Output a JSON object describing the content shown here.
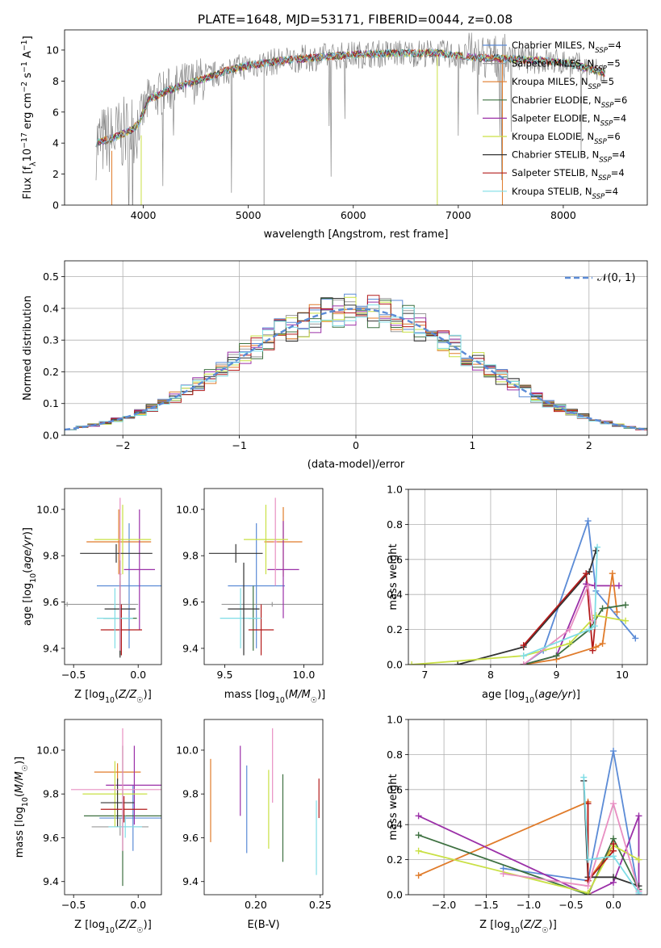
{
  "figure": {
    "title": "PLATE=1648, MJD=53171, FIBERID=0044, z=0.08"
  },
  "series_styles": [
    {
      "name": "Chabrier MILES",
      "nssp": "4",
      "color": "#5b8bd6"
    },
    {
      "name": "Salpeter MILES",
      "nssp": "5",
      "color": "#9a9a9a"
    },
    {
      "name": "Kroupa MILES",
      "nssp": "5",
      "color": "#e07b2a"
    },
    {
      "name": "Chabrier ELODIE",
      "nssp": "6",
      "color": "#3d7040"
    },
    {
      "name": "Salpeter ELODIE",
      "nssp": "4",
      "color": "#9b30a8"
    },
    {
      "name": "Kroupa ELODIE",
      "nssp": "6",
      "color": "#c9e044"
    },
    {
      "name": "Chabrier STELIB",
      "nssp": "4",
      "color": "#333333"
    },
    {
      "name": "Salpeter STELIB",
      "nssp": "4",
      "color": "#b31b1b"
    },
    {
      "name": "Kroupa STELIB",
      "nssp": "4",
      "color": "#7fdde6"
    }
  ],
  "chart_data": [
    {
      "id": "spectrum",
      "type": "line",
      "xlabel": "wavelength [Angstrom, rest frame]",
      "ylabel": "Flux [f_λ 10^-17 erg cm^-2 s^-1 A^-1]",
      "xlim": [
        3250,
        8800
      ],
      "ylim": [
        0,
        11.3
      ],
      "xticks": [
        4000,
        5000,
        6000,
        7000,
        8000
      ],
      "yticks": [
        0,
        2,
        4,
        6,
        8,
        10
      ],
      "data_color": "#888888",
      "continuum": {
        "x": [
          3550,
          3700,
          3850,
          3950,
          4050,
          4200,
          4400,
          4600,
          4800,
          5000,
          5300,
          5600,
          6000,
          6400,
          6800,
          7200,
          7600,
          8000,
          8300,
          8400
        ],
        "y": [
          4.0,
          4.3,
          4.7,
          5.2,
          6.8,
          7.3,
          7.8,
          8.2,
          8.7,
          9.0,
          9.3,
          9.5,
          9.7,
          9.8,
          9.8,
          9.5,
          9.4,
          9.2,
          8.7,
          8.5
        ]
      },
      "grid": false,
      "legend": "right"
    },
    {
      "id": "residuals",
      "type": "line",
      "xlabel": "(data-model)/error",
      "ylabel": "Normed distribution",
      "xlim": [
        -2.5,
        2.5
      ],
      "ylim": [
        0,
        0.55
      ],
      "xticks": [
        -2,
        -1,
        0,
        1,
        2
      ],
      "yticks": [
        0.0,
        0.1,
        0.2,
        0.3,
        0.4,
        0.5
      ],
      "gaussian_label": "𝒩(0, 1)",
      "gaussian_color": "#5b8bd6",
      "grid": true,
      "legend": "top-right"
    },
    {
      "id": "age-vs-Z",
      "type": "scatter",
      "xlabel": "Z [log10(Z/Z☉)]",
      "ylabel": "age [log10(age/yr)]",
      "xlim": [
        -0.57,
        0.18
      ],
      "ylim": [
        9.33,
        10.09
      ],
      "xticks": [
        -0.5,
        0.0
      ],
      "yticks": [
        9.4,
        9.6,
        9.8,
        10.0
      ],
      "points": [
        {
          "x": -0.07,
          "xerr": 0.25,
          "y": 9.67,
          "yerr": 0.27,
          "c": 0
        },
        {
          "x": -0.55,
          "xerr": 0.55,
          "y": 9.59,
          "yerr": 0.01,
          "c": 1
        },
        {
          "x": -0.15,
          "xerr": 0.25,
          "y": 9.86,
          "yerr": 0.14,
          "c": 2
        },
        {
          "x": -0.14,
          "xerr": 0.13,
          "y": 9.53,
          "yerr": 0.16,
          "c": 3
        },
        {
          "x": 0.01,
          "xerr": 0.12,
          "y": 9.74,
          "yerr": 0.26,
          "c": 4
        },
        {
          "x": -0.12,
          "xerr": 0.22,
          "y": 9.87,
          "yerr": 0.15,
          "c": 5
        },
        {
          "x": -0.17,
          "xerr": 0.28,
          "y": 9.81,
          "yerr": 0.04,
          "c": 6
        },
        {
          "x": -0.13,
          "xerr": 0.16,
          "y": 9.48,
          "yerr": 0.11,
          "c": 7
        },
        {
          "x": -0.18,
          "xerr": 0.14,
          "y": 9.53,
          "yerr": 0.13,
          "c": 8
        },
        {
          "x": -0.14,
          "xerr": 0.12,
          "y": 9.57,
          "yerr": 0.21,
          "c": 6
        },
        {
          "x": -0.14,
          "xerr": 0.01,
          "y": 9.72,
          "yerr": 0.33,
          "c": 9
        }
      ]
    },
    {
      "id": "age-vs-mass",
      "type": "scatter",
      "xlabel": "mass [log10(M/M☉)]",
      "ylabel": "",
      "xlim": [
        9.37,
        10.12
      ],
      "ylim": [
        9.33,
        10.09
      ],
      "xticks": [
        9.5,
        10.0
      ],
      "yticks": [
        9.4,
        9.6,
        9.8,
        10.0
      ],
      "points": [
        {
          "x": 9.7,
          "xerr": 0.18,
          "y": 9.67,
          "yerr": 0.27,
          "c": 0
        },
        {
          "x": 9.8,
          "xerr": 0.32,
          "y": 9.59,
          "yerr": 0.01,
          "c": 1
        },
        {
          "x": 9.87,
          "xerr": 0.12,
          "y": 9.86,
          "yerr": 0.15,
          "c": 2
        },
        {
          "x": 9.68,
          "xerr": 0.03,
          "y": 9.53,
          "yerr": 0.14,
          "c": 3
        },
        {
          "x": 9.87,
          "xerr": 0.1,
          "y": 9.74,
          "yerr": 0.21,
          "c": 4
        },
        {
          "x": 9.76,
          "xerr": 0.14,
          "y": 9.87,
          "yerr": 0.15,
          "c": 5
        },
        {
          "x": 9.57,
          "xerr": 0.17,
          "y": 9.81,
          "yerr": 0.04,
          "c": 6
        },
        {
          "x": 9.73,
          "xerr": 0.08,
          "y": 9.48,
          "yerr": 0.11,
          "c": 7
        },
        {
          "x": 9.6,
          "xerr": 0.13,
          "y": 9.53,
          "yerr": 0.13,
          "c": 8
        },
        {
          "x": 9.62,
          "xerr": 0.1,
          "y": 9.57,
          "yerr": 0.2,
          "c": 6
        },
        {
          "x": 9.82,
          "xerr": 0.01,
          "y": 9.86,
          "yerr": 0.19,
          "c": 9
        }
      ]
    },
    {
      "id": "mass-weight-vs-age",
      "type": "line",
      "xlabel": "age  [log10(age/yr)]",
      "ylabel": "mass weight",
      "xlim": [
        6.75,
        10.38
      ],
      "ylim": [
        0,
        1.0
      ],
      "xticks": [
        7,
        8,
        9,
        10
      ],
      "yticks": [
        0.0,
        0.2,
        0.4,
        0.6,
        0.8,
        1.0
      ],
      "grid": true,
      "series": [
        {
          "c": 0,
          "x": [
            8.5,
            8.8,
            9.48,
            9.6,
            10.2
          ],
          "y": [
            0.0,
            0.08,
            0.82,
            0.42,
            0.15
          ]
        },
        {
          "c": 6,
          "x": [
            7.5,
            8.5,
            9.5,
            9.6
          ],
          "y": [
            0.0,
            0.1,
            0.53,
            0.65
          ]
        },
        {
          "c": 7,
          "x": [
            8.5,
            9.45,
            9.55,
            9.6
          ],
          "y": [
            0.11,
            0.52,
            0.08,
            0.28
          ]
        },
        {
          "c": 4,
          "x": [
            8.5,
            9.0,
            9.45,
            9.58,
            9.95
          ],
          "y": [
            0.0,
            0.05,
            0.46,
            0.45,
            0.45
          ]
        },
        {
          "c": 2,
          "x": [
            8.5,
            9.0,
            9.6,
            9.7,
            9.85,
            9.92
          ],
          "y": [
            0.0,
            0.03,
            0.1,
            0.12,
            0.52,
            0.3
          ]
        },
        {
          "c": 3,
          "x": [
            8.5,
            9.0,
            9.5,
            9.7,
            10.05
          ],
          "y": [
            0.0,
            0.05,
            0.2,
            0.32,
            0.34
          ]
        },
        {
          "c": 5,
          "x": [
            6.8,
            8.5,
            9.2,
            9.6,
            10.05
          ],
          "y": [
            0.0,
            0.05,
            0.12,
            0.28,
            0.25
          ]
        },
        {
          "c": 9,
          "x": [
            8.5,
            9.2,
            9.48,
            9.55
          ],
          "y": [
            0.0,
            0.2,
            0.45,
            0.25
          ]
        },
        {
          "c": 8,
          "x": [
            8.5,
            9.5,
            9.58,
            9.62
          ],
          "y": [
            0.05,
            0.2,
            0.22,
            0.67
          ]
        }
      ]
    },
    {
      "id": "mass-vs-Z",
      "type": "scatter",
      "xlabel": "Z [log10(Z/Z☉)]",
      "ylabel": "mass [log10(M/M☉)]",
      "xlim": [
        -0.57,
        0.18
      ],
      "ylim": [
        9.34,
        10.14
      ],
      "xticks": [
        -0.5,
        0.0
      ],
      "yticks": [
        9.4,
        9.6,
        9.8,
        10.0
      ],
      "points": [
        {
          "x": -0.04,
          "xerr": 0.26,
          "y": 9.69,
          "yerr": 0.15,
          "c": 0
        },
        {
          "x": -0.14,
          "xerr": 0.22,
          "y": 9.65,
          "yerr": 0.04,
          "c": 1
        },
        {
          "x": -0.16,
          "xerr": 0.18,
          "y": 9.9,
          "yerr": 0.04,
          "c": 2
        },
        {
          "x": -0.12,
          "xerr": 0.3,
          "y": 9.7,
          "yerr": 0.32,
          "c": 3
        },
        {
          "x": -0.03,
          "xerr": 0.22,
          "y": 9.84,
          "yerr": 0.18,
          "c": 4
        },
        {
          "x": -0.18,
          "xerr": 0.25,
          "y": 9.8,
          "yerr": 0.15,
          "c": 5
        },
        {
          "x": -0.16,
          "xerr": 0.13,
          "y": 9.76,
          "yerr": 0.11,
          "c": 6
        },
        {
          "x": -0.11,
          "xerr": 0.18,
          "y": 9.73,
          "yerr": 0.06,
          "c": 7
        },
        {
          "x": -0.1,
          "xerr": 0.13,
          "y": 9.65,
          "yerr": 0.05,
          "c": 8
        },
        {
          "x": -0.12,
          "xerr": 0.4,
          "y": 9.82,
          "yerr": 0.28,
          "c": 9
        }
      ]
    },
    {
      "id": "EBV",
      "type": "scatter",
      "xlabel": "E(B-V)",
      "ylabel": "",
      "xlim": [
        0.16,
        0.252
      ],
      "ylim": [
        9.34,
        10.14
      ],
      "xticks": [
        0.2,
        0.25
      ],
      "yticks": [
        9.4,
        9.6,
        9.8,
        10.0
      ],
      "points": [
        {
          "x": 0.165,
          "y": 9.77,
          "yerr": 0.19,
          "c": 2
        },
        {
          "x": 0.188,
          "y": 9.86,
          "yerr": 0.16,
          "c": 4
        },
        {
          "x": 0.193,
          "y": 9.73,
          "yerr": 0.2,
          "c": 0
        },
        {
          "x": 0.21,
          "y": 9.73,
          "yerr": 0.18,
          "c": 5
        },
        {
          "x": 0.213,
          "y": 9.93,
          "yerr": 0.17,
          "c": 9
        },
        {
          "x": 0.221,
          "y": 9.69,
          "yerr": 0.2,
          "c": 3
        },
        {
          "x": 0.247,
          "y": 9.6,
          "yerr": 0.17,
          "c": 8
        },
        {
          "x": 0.249,
          "y": 9.78,
          "yerr": 0.09,
          "c": 7
        }
      ]
    },
    {
      "id": "mass-weight-vs-Z",
      "type": "line",
      "xlabel": "Z [log10(Z/Z☉)]",
      "ylabel": "mass weight",
      "xlim": [
        -2.42,
        0.4
      ],
      "ylim": [
        0,
        1.0
      ],
      "xticks": [
        -2.0,
        -1.5,
        -1.0,
        -0.5,
        0.0
      ],
      "yticks": [
        0.0,
        0.2,
        0.4,
        0.6,
        0.8,
        1.0
      ],
      "grid": true,
      "series": [
        {
          "c": 0,
          "x": [
            -1.3,
            -0.3,
            0.0,
            0.3
          ],
          "y": [
            0.15,
            0.08,
            0.82,
            0.0
          ]
        },
        {
          "c": 2,
          "x": [
            -2.3,
            -0.3,
            -0.3,
            0.0
          ],
          "y": [
            0.11,
            0.53,
            0.08,
            0.28
          ]
        },
        {
          "c": 4,
          "x": [
            -2.3,
            -0.3,
            0.0,
            0.3,
            0.3
          ],
          "y": [
            0.45,
            0.0,
            0.07,
            0.45,
            0.02
          ]
        },
        {
          "c": 3,
          "x": [
            -2.3,
            -0.3,
            0.0,
            0.3
          ],
          "y": [
            0.34,
            0.0,
            0.32,
            0.03
          ]
        },
        {
          "c": 5,
          "x": [
            -2.3,
            -0.3,
            0.0,
            0.3
          ],
          "y": [
            0.25,
            0.01,
            0.28,
            0.2
          ]
        },
        {
          "c": 6,
          "x": [
            -0.35,
            -0.3,
            0.0,
            0.3
          ],
          "y": [
            0.65,
            0.1,
            0.1,
            0.05
          ]
        },
        {
          "c": 7,
          "x": [
            -0.3,
            -0.3,
            0.0,
            0.0
          ],
          "y": [
            0.52,
            0.08,
            0.25,
            0.29
          ]
        },
        {
          "c": 9,
          "x": [
            -1.3,
            -0.3,
            0.0,
            0.3
          ],
          "y": [
            0.12,
            0.05,
            0.52,
            0.02
          ]
        },
        {
          "c": 8,
          "x": [
            -0.35,
            -0.3,
            0.0,
            0.3
          ],
          "y": [
            0.67,
            0.2,
            0.22,
            0.01
          ]
        }
      ]
    }
  ]
}
